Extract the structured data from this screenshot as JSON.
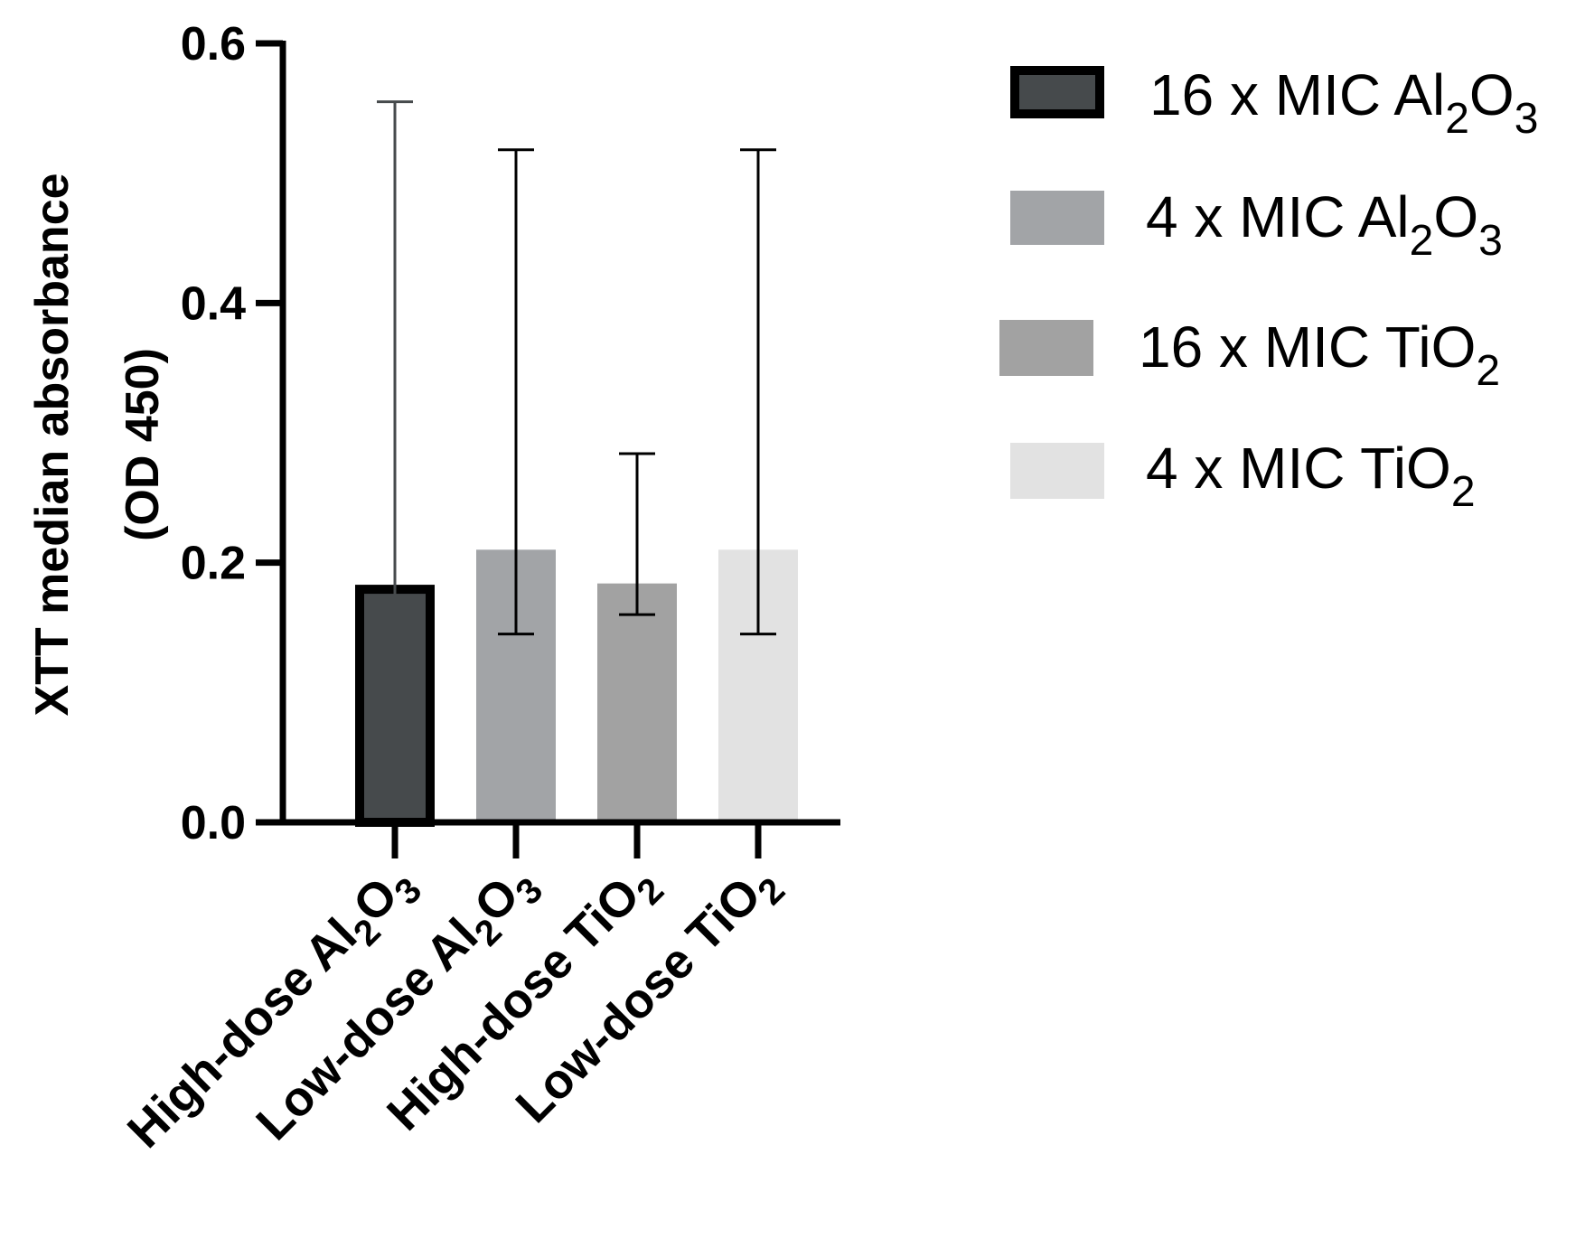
{
  "chart_data": {
    "type": "bar",
    "title": "",
    "ylabel": "XTT median absorbance",
    "ylabel_line2": "(OD 450)",
    "xlabel": "",
    "ylim": [
      0,
      0.6
    ],
    "yticks": [
      {
        "value": 0.0,
        "label": "0.0"
      },
      {
        "value": 0.2,
        "label": "0.2"
      },
      {
        "value": 0.4,
        "label": "0.4"
      },
      {
        "value": 0.6,
        "label": "0.6"
      }
    ],
    "categories": [
      {
        "main": "High-dose Al",
        "s1": "2",
        "mid": "O",
        "s2": "3"
      },
      {
        "main": "Low-dose  Al",
        "s1": "2",
        "mid": "O",
        "s2": "3"
      },
      {
        "main": "High-dose TiO",
        "s1": "2",
        "mid": "",
        "s2": ""
      },
      {
        "main": "Low-dose TiO",
        "s1": "2",
        "mid": "",
        "s2": ""
      }
    ],
    "values": [
      0.183,
      0.21,
      0.184,
      0.21
    ],
    "error_low": [
      0.145,
      0.145,
      0.16,
      0.145
    ],
    "error_high": [
      0.555,
      0.518,
      0.284,
      0.518
    ],
    "legend": [
      {
        "pre": "16 x MIC Al",
        "s1": "2",
        "mid": "O",
        "s2": "3"
      },
      {
        "pre": "4 x MIC Al",
        "s1": "2",
        "mid": "O",
        "s2": "3"
      },
      {
        "pre": "16 x MIC TiO",
        "s1": "2",
        "mid": "",
        "s2": ""
      },
      {
        "pre": "4 x MIC TiO",
        "s1": "2",
        "mid": "",
        "s2": ""
      }
    ],
    "colors": [
      "#464a4c",
      "#a2a4a7",
      "#a2a2a2",
      "#e2e2e2"
    ],
    "outline_color": "#000000",
    "legend_position": "top-right"
  }
}
